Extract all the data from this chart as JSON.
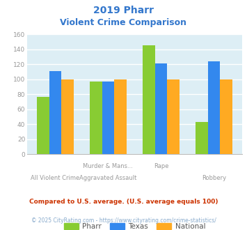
{
  "title_line1": "2019 Pharr",
  "title_line2": "Violent Crime Comparison",
  "title_color": "#3377cc",
  "cat_labels_row1": [
    "",
    "Murder & Mans...",
    "Rape",
    ""
  ],
  "cat_labels_row2": [
    "All Violent Crime",
    "Aggravated Assault",
    "",
    "Robbery"
  ],
  "pharr": [
    77,
    97,
    146,
    43
  ],
  "texas": [
    111,
    97,
    121,
    124
  ],
  "national": [
    100,
    100,
    100,
    100
  ],
  "pharr_color": "#88cc33",
  "texas_color": "#3388ee",
  "national_color": "#ffaa22",
  "ylim": [
    0,
    160
  ],
  "yticks": [
    0,
    20,
    40,
    60,
    80,
    100,
    120,
    140,
    160
  ],
  "plot_bg": "#ddeef5",
  "fig_bg": "#ffffff",
  "grid_color": "#ffffff",
  "footnote1": "Compared to U.S. average. (U.S. average equals 100)",
  "footnote2": "© 2025 CityRating.com - https://www.cityrating.com/crime-statistics/",
  "footnote1_color": "#cc3300",
  "footnote2_color": "#88aacc",
  "legend_labels": [
    "Pharr",
    "Texas",
    "National"
  ],
  "bar_width": 0.23
}
